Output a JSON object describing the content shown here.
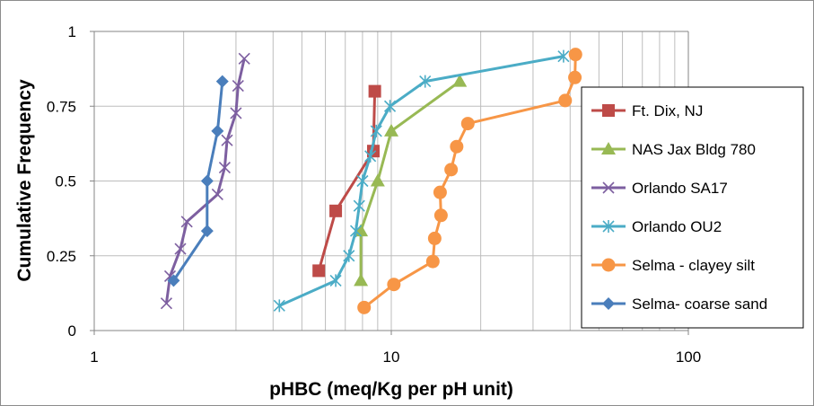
{
  "chart_data": {
    "type": "scatter",
    "title": "",
    "xlabel": "pHBC (meq/Kg per pH unit)",
    "ylabel": "Cumulative Frequency",
    "xscale": "log",
    "xlim": [
      1,
      100
    ],
    "ylim": [
      0,
      1
    ],
    "grid": true,
    "legend_position": "right",
    "x_ticks": [
      "1",
      "10",
      "100"
    ],
    "y_ticks": [
      "0",
      "0.25",
      "0.5",
      "0.75",
      "1"
    ],
    "series": [
      {
        "name": "Ft. Dix, NJ",
        "color": "#be4b48",
        "marker": "square",
        "x": [
          5.7,
          6.5,
          8.7,
          8.8
        ],
        "y": [
          0.2,
          0.4,
          0.6,
          0.8
        ]
      },
      {
        "name": "NAS Jax Bldg 780",
        "color": "#98b954",
        "marker": "triangle",
        "x": [
          7.9,
          7.9,
          9.0,
          10.0,
          17.0
        ],
        "y": [
          0.167,
          0.333,
          0.5,
          0.667,
          0.833
        ]
      },
      {
        "name": "Orlando SA17",
        "color": "#7d5fa0",
        "marker": "x",
        "x": [
          1.75,
          1.8,
          1.95,
          2.05,
          2.6,
          2.75,
          2.8,
          3.0,
          3.05,
          3.2
        ],
        "y": [
          0.091,
          0.182,
          0.273,
          0.364,
          0.455,
          0.545,
          0.636,
          0.727,
          0.818,
          0.909
        ]
      },
      {
        "name": "Orlando OU2",
        "color": "#4bacc6",
        "marker": "asterisk",
        "x": [
          4.2,
          6.5,
          7.2,
          7.6,
          7.8,
          8.0,
          8.5,
          8.9,
          9.9,
          13.0,
          38.0
        ],
        "y": [
          0.083,
          0.167,
          0.25,
          0.333,
          0.417,
          0.5,
          0.583,
          0.667,
          0.75,
          0.833,
          0.917
        ]
      },
      {
        "name": "Selma - clayey silt",
        "color": "#f79646",
        "marker": "circle",
        "x": [
          8.1,
          10.2,
          13.8,
          14.0,
          14.7,
          14.6,
          15.9,
          16.6,
          18.1,
          38.5,
          41.5,
          41.7
        ],
        "y": [
          0.077,
          0.154,
          0.231,
          0.308,
          0.385,
          0.462,
          0.538,
          0.615,
          0.692,
          0.769,
          0.846,
          0.923
        ]
      },
      {
        "name": "Selma- coarse sand",
        "color": "#4a7ebb",
        "marker": "diamond",
        "x": [
          1.85,
          2.4,
          2.4,
          2.6,
          2.7
        ],
        "y": [
          0.167,
          0.333,
          0.5,
          0.667,
          0.833
        ]
      }
    ]
  }
}
